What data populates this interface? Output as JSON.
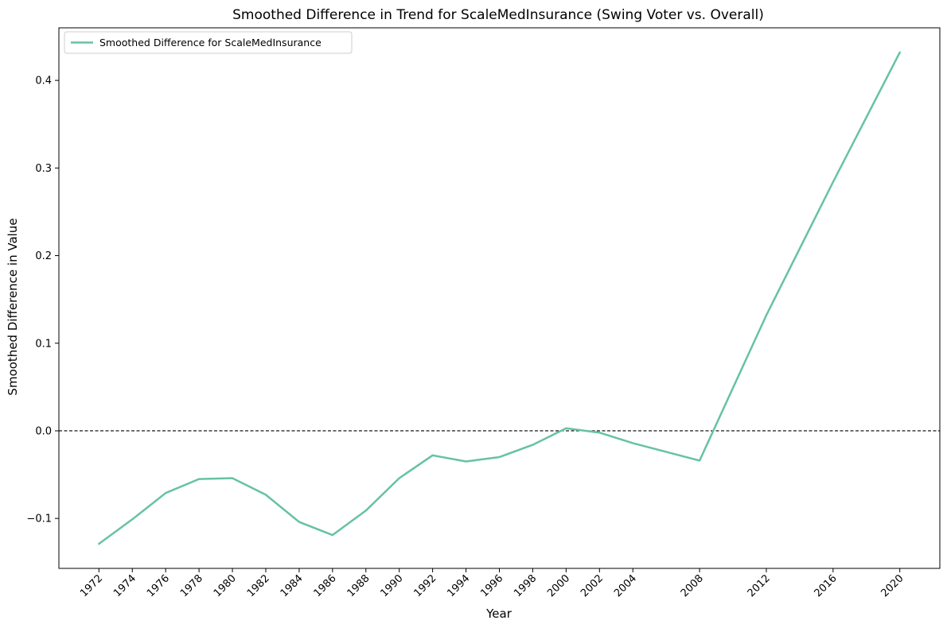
{
  "chart_data": {
    "type": "line",
    "title": "Smoothed Difference in Trend for ScaleMedInsurance (Swing Voter vs. Overall)",
    "xlabel": "Year",
    "ylabel": "Smoothed Difference in Value",
    "x": [
      1972,
      1974,
      1976,
      1978,
      1980,
      1982,
      1984,
      1986,
      1988,
      1990,
      1992,
      1994,
      1996,
      1998,
      2000,
      2002,
      2004,
      2008,
      2012,
      2016,
      2020
    ],
    "series": [
      {
        "name": "Smoothed Difference for ScaleMedInsurance",
        "color": "#66c2a5",
        "values": [
          -0.129,
          -0.101,
          -0.071,
          -0.055,
          -0.054,
          -0.073,
          -0.104,
          -0.119,
          -0.091,
          -0.054,
          -0.028,
          -0.035,
          -0.03,
          -0.016,
          0.003,
          -0.002,
          -0.014,
          -0.034,
          0.132,
          0.284,
          0.432
        ]
      }
    ],
    "xticks": [
      "1972",
      "1974",
      "1976",
      "1978",
      "1980",
      "1982",
      "1984",
      "1986",
      "1988",
      "1990",
      "1992",
      "1994",
      "1996",
      "1998",
      "2000",
      "2002",
      "2004",
      "2008",
      "2012",
      "2016",
      "2020"
    ],
    "yticks": [
      -0.1,
      0.0,
      0.1,
      0.2,
      0.3,
      0.4
    ],
    "ytick_labels": [
      "−0.1",
      "0.0",
      "0.1",
      "0.2",
      "0.3",
      "0.4"
    ],
    "xlim": [
      1969.6,
      2022.4
    ],
    "ylim": [
      -0.157,
      0.46
    ],
    "reference_line": {
      "y": 0,
      "style": "dashed",
      "color": "#000000"
    },
    "legend_position": "top-left",
    "grid": false
  }
}
